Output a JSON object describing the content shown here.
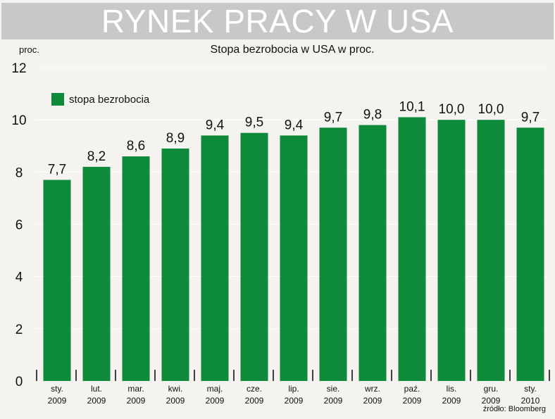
{
  "header": {
    "title": "RYNEK PRACY W USA"
  },
  "colors": {
    "bar": "#0d8a3a",
    "banner": "#c8c8c8",
    "background": "#f4f3ef",
    "gridline": "#ffffff"
  },
  "source": "źródło: Bloomberg",
  "chart_data": {
    "type": "bar",
    "title": "Stopa bezrobocia w USA w proc.",
    "ylabel": "proc.",
    "xlabel": "",
    "ylim": [
      0,
      12
    ],
    "yticks": [
      0,
      2,
      4,
      6,
      8,
      10,
      12
    ],
    "grid": true,
    "legend_position": "top-left",
    "categories": [
      [
        "sty.",
        "2009"
      ],
      [
        "lut.",
        "2009"
      ],
      [
        "mar.",
        "2009"
      ],
      [
        "kwi.",
        "2009"
      ],
      [
        "maj.",
        "2009"
      ],
      [
        "cze.",
        "2009"
      ],
      [
        "lip.",
        "2009"
      ],
      [
        "sie.",
        "2009"
      ],
      [
        "wrz.",
        "2009"
      ],
      [
        "paź.",
        "2009"
      ],
      [
        "lis.",
        "2009"
      ],
      [
        "gru.",
        "2009"
      ],
      [
        "sty.",
        "2010"
      ]
    ],
    "series": [
      {
        "name": "stopa bezrobocia",
        "values": [
          7.7,
          8.2,
          8.6,
          8.9,
          9.4,
          9.5,
          9.4,
          9.7,
          9.8,
          10.1,
          10.0,
          10.0,
          9.7
        ],
        "labels": [
          "7,7",
          "8,2",
          "8,6",
          "8,9",
          "9,4",
          "9,5",
          "9,4",
          "9,7",
          "9,8",
          "10,1",
          "10,0",
          "10,0",
          "9,7"
        ]
      }
    ]
  }
}
